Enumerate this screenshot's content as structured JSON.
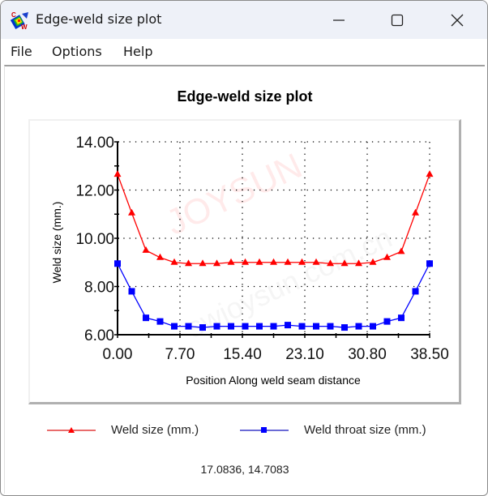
{
  "window": {
    "title": "Edge-weld size plot",
    "icon": "cw-app-icon",
    "controls": {
      "minimize": "minimize-icon",
      "maximize": "maximize-icon",
      "close": "close-icon"
    }
  },
  "menu": {
    "items": [
      {
        "label": "File"
      },
      {
        "label": "Options"
      },
      {
        "label": "Help"
      }
    ]
  },
  "status": {
    "cursor_coords": "17.0836, 14.7083"
  },
  "colors": {
    "weld_size": "#ff0000",
    "weld_throat": "#0000ff",
    "grid": "#000000",
    "titlebar": "#eef1f8"
  },
  "chart_data": {
    "type": "line",
    "title": "Edge-weld size plot",
    "xlabel": "Position Along weld seam distance",
    "ylabel": "Weld size (mm.)",
    "xlim": [
      0,
      38.5
    ],
    "ylim": [
      6,
      14
    ],
    "x_ticks": [
      "0.00",
      "7.70",
      "15.40",
      "23.10",
      "30.80",
      "38.50"
    ],
    "y_ticks": [
      "6.00",
      "8.00",
      "10.00",
      "12.00",
      "14.00"
    ],
    "grid": true,
    "legend_position": "bottom",
    "x": [
      0,
      1.75,
      3.5,
      5.25,
      7.0,
      8.75,
      10.5,
      12.25,
      14.0,
      15.75,
      17.5,
      19.25,
      21.0,
      22.75,
      24.5,
      26.25,
      28.0,
      29.75,
      31.5,
      33.25,
      35.0,
      36.75,
      38.5
    ],
    "series": [
      {
        "name": "Weld size (mm.)",
        "color": "#ff0000",
        "marker": "triangle",
        "values": [
          12.65,
          11.05,
          9.5,
          9.2,
          9.0,
          8.95,
          8.95,
          8.95,
          9.0,
          9.0,
          9.0,
          9.0,
          9.0,
          9.0,
          9.0,
          8.95,
          8.95,
          8.95,
          9.0,
          9.2,
          9.45,
          11.05,
          12.65
        ]
      },
      {
        "name": "Weld throat size (mm.)",
        "color": "#0000ff",
        "marker": "square",
        "values": [
          8.95,
          7.8,
          6.7,
          6.55,
          6.35,
          6.35,
          6.3,
          6.35,
          6.35,
          6.35,
          6.35,
          6.35,
          6.4,
          6.35,
          6.35,
          6.35,
          6.3,
          6.35,
          6.35,
          6.55,
          6.7,
          7.8,
          8.95
        ]
      }
    ]
  }
}
